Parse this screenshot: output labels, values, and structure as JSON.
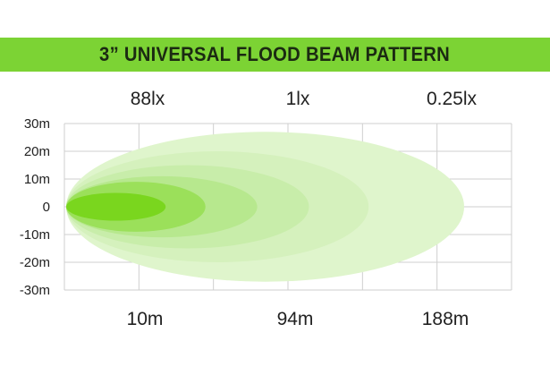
{
  "chart_data": {
    "type": "area",
    "title": "3” UNIVERSAL FLOOD BEAM PATTERN",
    "y_tick_labels": [
      "30m",
      "20m",
      "10m",
      "0",
      "-10m",
      "-20m",
      "-30m"
    ],
    "ylim": [
      -30,
      30
    ],
    "x_marker_labels": [
      "10m",
      "94m",
      "188m"
    ],
    "lux_labels": [
      "88lx",
      "1lx",
      "0.25lx"
    ],
    "beam_zones": [
      {
        "reach_fraction": 0.25,
        "half_width_m": 5,
        "color": "#7ad61e"
      },
      {
        "reach_fraction": 0.35,
        "half_width_m": 9,
        "color": "#9be05a"
      },
      {
        "reach_fraction": 0.48,
        "half_width_m": 11,
        "color": "#b7e88e"
      },
      {
        "reach_fraction": 0.61,
        "half_width_m": 15,
        "color": "#c8edaa"
      },
      {
        "reach_fraction": 0.76,
        "half_width_m": 20,
        "color": "#d5f1bd"
      },
      {
        "reach_fraction": 1.0,
        "half_width_m": 27,
        "color": "#dff5cc"
      }
    ],
    "grid": true,
    "colors": {
      "title_bar": "#7cd334",
      "grid": "#cfcfcf",
      "text": "#222222"
    }
  }
}
